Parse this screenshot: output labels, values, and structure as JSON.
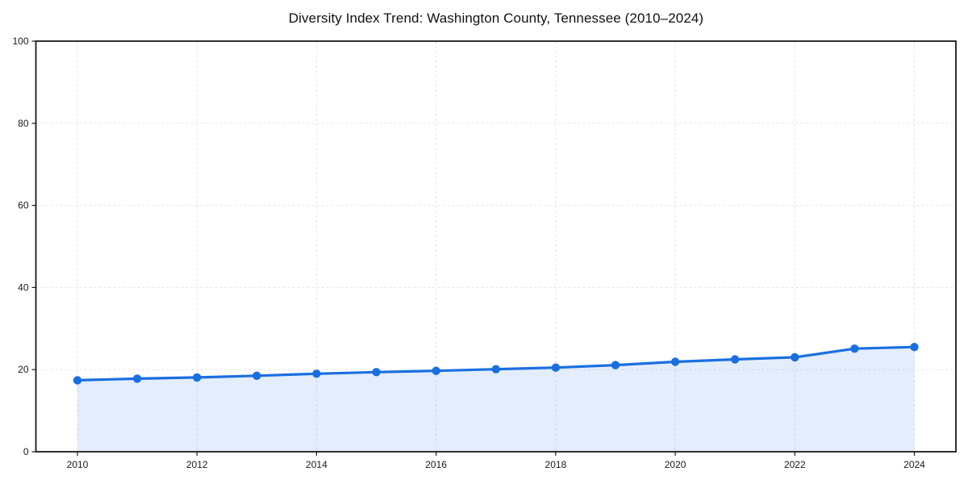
{
  "figure": {
    "background": "#ffffff"
  },
  "chart_data": {
    "type": "area",
    "title": "Diversity Index Trend: Washington County, Tennessee (2010–2024)",
    "xlabel": "",
    "ylabel": "",
    "x": [
      2010,
      2011,
      2012,
      2013,
      2014,
      2015,
      2016,
      2017,
      2018,
      2019,
      2020,
      2021,
      2022,
      2023,
      2024
    ],
    "values": [
      17.4,
      17.8,
      18.1,
      18.5,
      19.0,
      19.4,
      19.7,
      20.1,
      20.5,
      21.1,
      21.9,
      22.5,
      23.0,
      25.1,
      25.5
    ],
    "xlim": [
      2010,
      2024
    ],
    "ylim": [
      0,
      100
    ],
    "xticks": [
      2010,
      2012,
      2014,
      2016,
      2018,
      2020,
      2022,
      2024
    ],
    "yticks": [
      0,
      20,
      40,
      60,
      80,
      100
    ],
    "grid": "dashed",
    "legend": null,
    "marker": "circle",
    "colors": {
      "line": "#1a6fe0",
      "fill_opacity": 0.12,
      "grid": "#e3e3e3",
      "spine": "#1a1a1a",
      "tick_text": "#1a1a1a",
      "title_text": "#111111",
      "background": "#ffffff"
    }
  }
}
